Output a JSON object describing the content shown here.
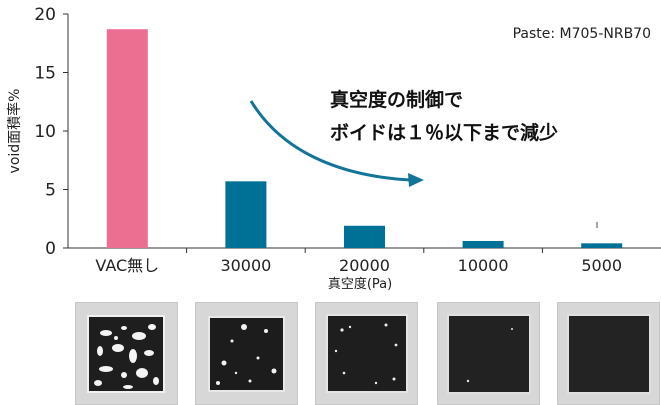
{
  "chart_data": {
    "type": "bar",
    "ylabel": "void面積率%",
    "xlabel": "真空度(Pa)",
    "ylim": [
      0,
      20
    ],
    "yticks": [
      0,
      5,
      10,
      15,
      20
    ],
    "categories": [
      "VAC無し",
      "30000",
      "20000",
      "10000",
      "5000"
    ],
    "values": [
      18.7,
      5.7,
      1.9,
      0.6,
      0.4
    ],
    "bar_colors": [
      "#ec6e91",
      "#007196",
      "#007196",
      "#007196",
      "#007196"
    ],
    "grid": false,
    "annotations": {
      "paste": "Paste: M705-NRB70",
      "line1": "真空度の制御で",
      "line2": "ボイドは１％以下まで減少"
    },
    "arrow_color": "#127497"
  },
  "images": [
    {
      "name": "xray-vac-none",
      "voids": "many"
    },
    {
      "name": "xray-30000",
      "voids": "medium"
    },
    {
      "name": "xray-20000",
      "voids": "few"
    },
    {
      "name": "xray-10000",
      "voids": "very-few"
    },
    {
      "name": "xray-5000",
      "voids": "minimal"
    }
  ]
}
